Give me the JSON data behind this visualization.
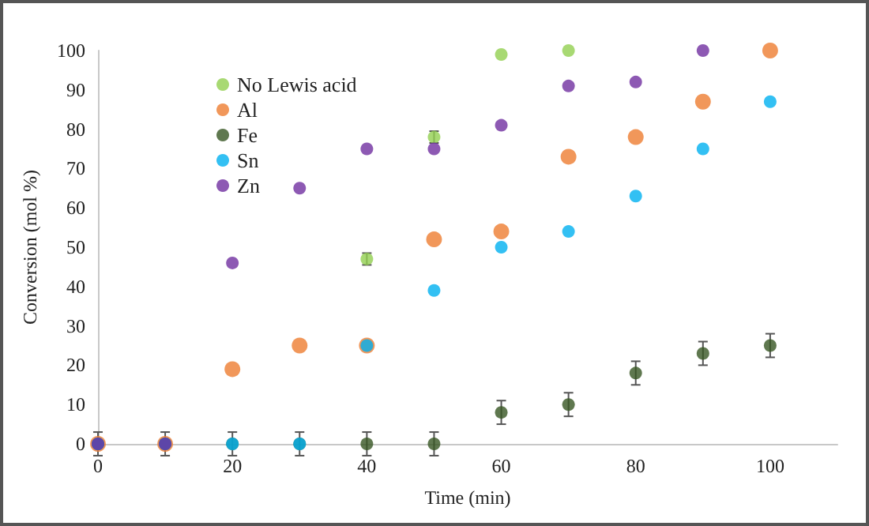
{
  "chart_data": {
    "type": "scatter",
    "xlabel": "Time (min)",
    "ylabel": "Conversion (mol %)",
    "xlim": [
      0,
      110
    ],
    "xticks": [
      0,
      20,
      40,
      60,
      80,
      100
    ],
    "ylim": [
      0,
      100
    ],
    "yticks": [
      0,
      10,
      20,
      30,
      40,
      50,
      60,
      70,
      80,
      90,
      100
    ],
    "grid": false,
    "legend": "top left",
    "marker": "circle",
    "series": [
      {
        "name": "No Lewis acid",
        "color": "#92d050",
        "x": [
          40,
          50,
          60,
          70
        ],
        "values": [
          47,
          78,
          99,
          100
        ],
        "errors": [
          1.5,
          1.5,
          null,
          null
        ]
      },
      {
        "name": "Al",
        "color": "#ed7d31",
        "x": [
          0,
          10,
          20,
          30,
          40,
          50,
          60,
          70,
          80,
          90,
          100
        ],
        "values": [
          0,
          0,
          19,
          25,
          25,
          52,
          54,
          73,
          78,
          87,
          100
        ]
      },
      {
        "name": "Fe",
        "color": "#375623",
        "x": [
          0,
          10,
          20,
          30,
          40,
          50,
          60,
          70,
          80,
          90,
          100
        ],
        "values": [
          0,
          0,
          0,
          0,
          0,
          0,
          8,
          10,
          18,
          23,
          25
        ],
        "errors": [
          3,
          3,
          3,
          3,
          3,
          3,
          3,
          3,
          3,
          3,
          3
        ]
      },
      {
        "name": "Sn",
        "color": "#00b0f0",
        "x": [
          0,
          10,
          20,
          30,
          40,
          50,
          60,
          70,
          80,
          90,
          100
        ],
        "values": [
          0,
          0,
          0,
          0,
          25,
          39,
          50,
          54,
          63,
          75,
          87
        ]
      },
      {
        "name": "Zn",
        "color": "#7030a0",
        "x": [
          0,
          10,
          20,
          30,
          40,
          50,
          60,
          70,
          80,
          90
        ],
        "values": [
          0,
          0,
          46,
          65,
          75,
          75,
          81,
          91,
          92,
          100
        ]
      }
    ]
  }
}
